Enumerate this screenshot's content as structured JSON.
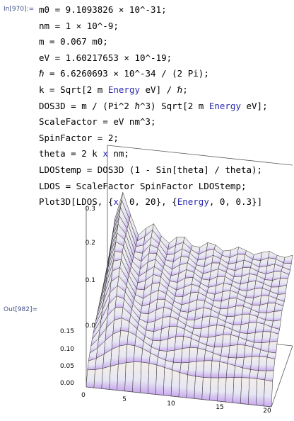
{
  "input_label": "In[970]:=",
  "code": [
    [
      {
        "text": "m0 = 9.1093826 × 10^-31;"
      }
    ],
    [
      {
        "text": "nm = 1 × 10^-9;"
      }
    ],
    [
      {
        "text": "m = 0.067 m0;"
      }
    ],
    [
      {
        "text": "eV = 1.60217653 × 10^-19;"
      }
    ],
    [
      {
        "text": "ℏ = 6.6260693 × 10^-34 / (2 Pi);"
      }
    ],
    [
      {
        "text": "k = Sqrt[2 m "
      },
      {
        "text": "Energy",
        "color": "#2a2ab0"
      },
      {
        "text": " eV] / ℏ;"
      }
    ],
    [
      {
        "text": "DOS3D = m / (Pi^2 ℏ^3) Sqrt[2 m "
      },
      {
        "text": "Energy",
        "color": "#2a2ab0"
      },
      {
        "text": " eV];"
      }
    ],
    [
      {
        "text": "ScaleFactor = eV nm^3;"
      }
    ],
    [
      {
        "text": "SpinFactor = 2;"
      }
    ],
    [
      {
        "text": "theta = 2 k "
      },
      {
        "text": "x",
        "color": "#2a2ab0"
      },
      {
        "text": " nm;"
      }
    ],
    [
      {
        "text": "LDOStemp = DOS3D (1 - Sin[theta] / theta);"
      }
    ],
    [
      {
        "text": "LDOS = ScaleFactor SpinFactor LDOStemp;"
      }
    ],
    [
      {
        "text": "Plot3D[LDOS, {"
      },
      {
        "text": "x",
        "color": "#2a2ab0"
      },
      {
        "text": ", 0, 20}, {"
      },
      {
        "text": "Energy",
        "color": "#2a2ab0"
      },
      {
        "text": ", 0, 0.3}]"
      }
    ]
  ],
  "output_label": "Out[982]=",
  "plot": {
    "z_ticks": [
      "0.0",
      "0.1",
      "0.2",
      "0.3"
    ],
    "y_ticks": [
      "0.00",
      "0.05",
      "0.10",
      "0.15"
    ],
    "x_ticks": [
      "0",
      "5",
      "10",
      "15",
      "20"
    ]
  }
}
